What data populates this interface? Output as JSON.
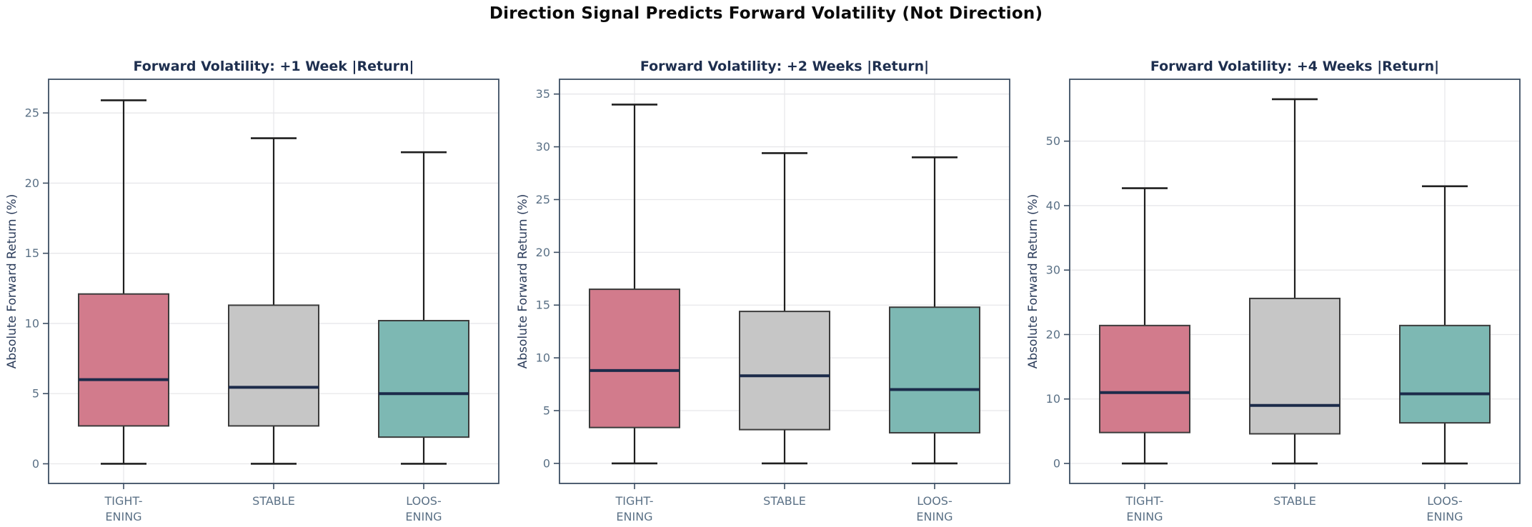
{
  "main_title": "Direction Signal Predicts Forward Volatility (Not Direction)",
  "colors": {
    "tightening_fill": "#d27b8c",
    "stable_fill": "#c6c6c6",
    "loosening_fill": "#7db8b3",
    "median_line": "#1c2b4a",
    "box_edge": "#3b3b3b",
    "whisker": "#1f1f1f",
    "gridline": "#e7e7ea",
    "spine": "#3c4e63",
    "tick_label": "#5b7186",
    "axis_label": "#2d3e5c",
    "subplot_title": "#1e2f4f",
    "main_title": "#0a0a0a",
    "background": "#ffffff"
  },
  "chart_data": [
    {
      "type": "box",
      "title": "Forward Volatility: +1 Week |Return|",
      "ylabel": "Absolute Forward Return (%)",
      "yticks": [
        0,
        5,
        10,
        15,
        20,
        25
      ],
      "ylim": [
        -1.4,
        27.4
      ],
      "grid": true,
      "categories": [
        "TIGHTENING",
        "STABLE",
        "LOOSENING"
      ],
      "category_label_lines": [
        [
          "TIGHT-",
          "ENING"
        ],
        [
          "STABLE"
        ],
        [
          "LOOS-",
          "ENING"
        ]
      ],
      "boxes": [
        {
          "category": "TIGHTENING",
          "whisker_low": 0.0,
          "q1": 2.7,
          "median": 6.0,
          "q3": 12.1,
          "whisker_high": 25.9,
          "color": "#d27b8c"
        },
        {
          "category": "STABLE",
          "whisker_low": 0.0,
          "q1": 2.7,
          "median": 5.45,
          "q3": 11.3,
          "whisker_high": 23.2,
          "color": "#c6c6c6"
        },
        {
          "category": "LOOSENING",
          "whisker_low": 0.0,
          "q1": 1.9,
          "median": 5.0,
          "q3": 10.2,
          "whisker_high": 22.2,
          "color": "#7db8b3"
        }
      ]
    },
    {
      "type": "box",
      "title": "Forward Volatility: +2 Weeks |Return|",
      "ylabel": "Absolute Forward Return (%)",
      "yticks": [
        0,
        5,
        10,
        15,
        20,
        25,
        30,
        35
      ],
      "ylim": [
        -1.9,
        36.4
      ],
      "grid": true,
      "categories": [
        "TIGHTENING",
        "STABLE",
        "LOOSENING"
      ],
      "category_label_lines": [
        [
          "TIGHT-",
          "ENING"
        ],
        [
          "STABLE"
        ],
        [
          "LOOS-",
          "ENING"
        ]
      ],
      "boxes": [
        {
          "category": "TIGHTENING",
          "whisker_low": 0.0,
          "q1": 3.4,
          "median": 8.8,
          "q3": 16.5,
          "whisker_high": 34.0,
          "color": "#d27b8c"
        },
        {
          "category": "STABLE",
          "whisker_low": 0.0,
          "q1": 3.2,
          "median": 8.3,
          "q3": 14.4,
          "whisker_high": 29.4,
          "color": "#c6c6c6"
        },
        {
          "category": "LOOSENING",
          "whisker_low": 0.0,
          "q1": 2.9,
          "median": 7.0,
          "q3": 14.8,
          "whisker_high": 29.0,
          "color": "#7db8b3"
        }
      ]
    },
    {
      "type": "box",
      "title": "Forward Volatility: +4 Weeks |Return|",
      "ylabel": "Absolute Forward Return (%)",
      "yticks": [
        0,
        10,
        20,
        30,
        40,
        50
      ],
      "ylim": [
        -3.1,
        59.6
      ],
      "grid": true,
      "categories": [
        "TIGHTENING",
        "STABLE",
        "LOOSENING"
      ],
      "category_label_lines": [
        [
          "TIGHT-",
          "ENING"
        ],
        [
          "STABLE"
        ],
        [
          "LOOS-",
          "ENING"
        ]
      ],
      "boxes": [
        {
          "category": "TIGHTENING",
          "whisker_low": 0.0,
          "q1": 4.8,
          "median": 11.0,
          "q3": 21.4,
          "whisker_high": 42.7,
          "color": "#d27b8c"
        },
        {
          "category": "STABLE",
          "whisker_low": 0.0,
          "q1": 4.6,
          "median": 9.0,
          "q3": 25.6,
          "whisker_high": 56.5,
          "color": "#c6c6c6"
        },
        {
          "category": "LOOSENING",
          "whisker_low": 0.0,
          "q1": 6.3,
          "median": 10.8,
          "q3": 21.4,
          "whisker_high": 43.0,
          "color": "#7db8b3"
        }
      ]
    }
  ]
}
